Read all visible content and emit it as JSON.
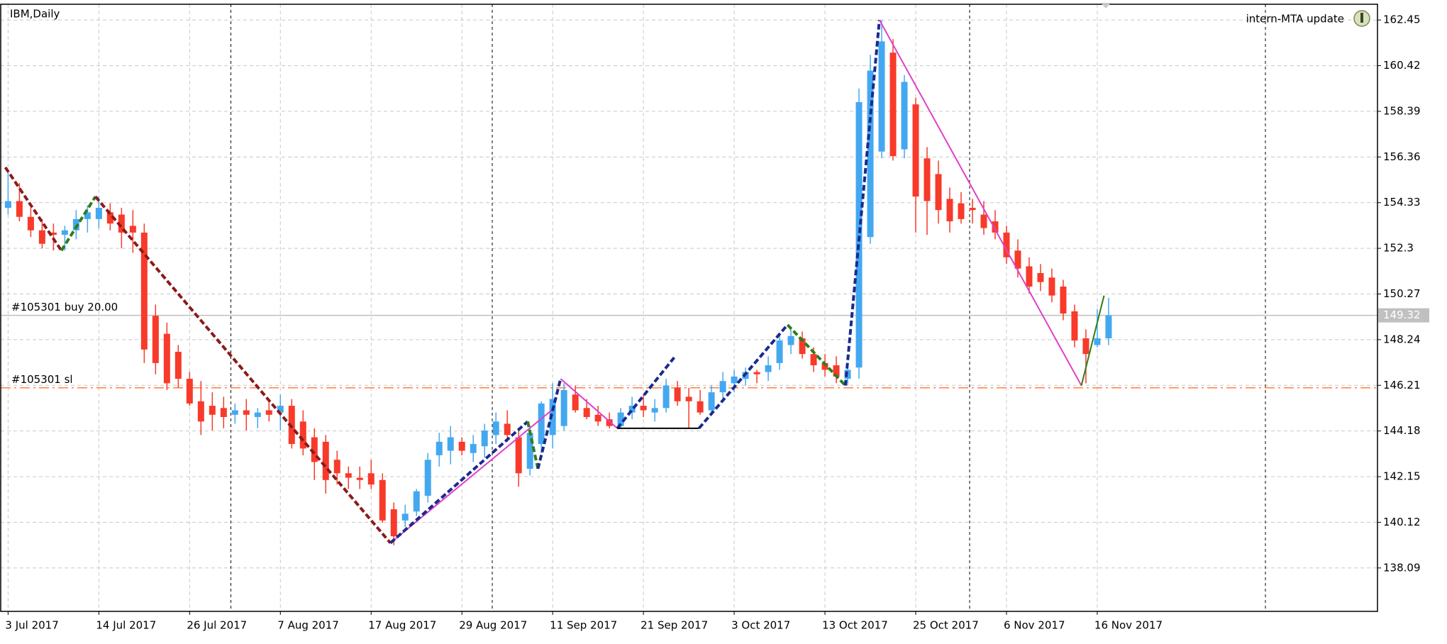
{
  "chart_data": {
    "type": "candlestick",
    "title": "IBM,Daily",
    "indicator_label": "intern-MTA update",
    "up_color": "#44a8f0",
    "down_color": "#f83a2a",
    "grid": true,
    "ylim": [
      136.16,
      163.15
    ],
    "yticks": [
      162.45,
      160.42,
      158.39,
      156.36,
      154.33,
      152.3,
      150.27,
      148.24,
      146.21,
      144.18,
      142.15,
      140.12,
      138.09
    ],
    "xlim": [
      -0.65,
      120.7
    ],
    "xticks": [
      {
        "value": 0,
        "label": "3 Jul 2017"
      },
      {
        "value": 8,
        "label": "14 Jul 2017"
      },
      {
        "value": 16,
        "label": "26 Jul 2017"
      },
      {
        "value": 24,
        "label": "7 Aug 2017"
      },
      {
        "value": 32,
        "label": "17 Aug 2017"
      },
      {
        "value": 40,
        "label": "29 Aug 2017"
      },
      {
        "value": 48,
        "label": "11 Sep 2017"
      },
      {
        "value": 56,
        "label": "21 Sep 2017"
      },
      {
        "value": 64,
        "label": "3 Oct 2017"
      },
      {
        "value": 72,
        "label": "13 Oct 2017"
      },
      {
        "value": 80,
        "label": "25 Oct 2017"
      },
      {
        "value": 88,
        "label": "6 Nov 2017"
      },
      {
        "value": 96,
        "label": "16 Nov 2017"
      }
    ],
    "candles": {
      "open": [
        154.1,
        154.4,
        153.7,
        153.1,
        153.0,
        152.9,
        153.1,
        153.6,
        153.6,
        153.9,
        153.8,
        153.3,
        153.0,
        149.3,
        148.5,
        147.7,
        146.5,
        145.5,
        145.3,
        145.2,
        144.9,
        145.1,
        144.8,
        145.1,
        145.0,
        145.3,
        144.6,
        143.9,
        143.7,
        142.9,
        142.3,
        142.1,
        142.3,
        142.0,
        140.7,
        140.2,
        140.6,
        141.3,
        143.1,
        143.3,
        143.7,
        143.2,
        143.5,
        144.0,
        144.5,
        143.9,
        142.5,
        143.6,
        144.0,
        144.4,
        145.8,
        145.2,
        144.9,
        144.7,
        144.4,
        145.0,
        145.3,
        145.0,
        145.2,
        146.1,
        145.7,
        145.5,
        145.1,
        145.9,
        146.3,
        146.5,
        146.8,
        146.8,
        147.2,
        148.0,
        148.3,
        147.6,
        147.2,
        147.1,
        146.5,
        147.0,
        152.8,
        156.6,
        161.0,
        156.7,
        158.7,
        156.3,
        155.6,
        154.5,
        154.3,
        154.1,
        153.8,
        153.5,
        153.0,
        152.2,
        151.5,
        151.2,
        151.0,
        150.6,
        149.5,
        148.3,
        148.0,
        148.3
      ],
      "high": [
        155.7,
        155.2,
        154.1,
        153.6,
        153.4,
        153.3,
        154.0,
        154.2,
        154.6,
        154.3,
        154.1,
        154.0,
        153.4,
        149.8,
        149.0,
        148.0,
        146.8,
        146.4,
        145.9,
        145.7,
        145.4,
        145.6,
        145.2,
        145.6,
        145.8,
        145.6,
        145.1,
        144.3,
        144.0,
        143.3,
        142.6,
        142.6,
        142.9,
        142.3,
        141.0,
        140.9,
        141.6,
        143.2,
        144.1,
        144.4,
        143.9,
        144.0,
        144.5,
        145.0,
        145.1,
        144.3,
        144.4,
        145.5,
        146.3,
        146.3,
        146.2,
        145.6,
        145.3,
        145.0,
        145.2,
        145.7,
        145.8,
        145.6,
        146.5,
        146.4,
        146.1,
        146.0,
        146.2,
        146.8,
        146.9,
        147.0,
        146.9,
        147.5,
        148.5,
        148.7,
        148.6,
        147.9,
        147.6,
        147.5,
        147.0,
        159.4,
        160.9,
        162.45,
        161.6,
        160.0,
        159.0,
        156.8,
        156.2,
        155.0,
        154.8,
        154.5,
        154.4,
        154.0,
        153.3,
        152.7,
        151.9,
        151.6,
        151.4,
        150.9,
        149.8,
        148.7,
        149.6,
        150.1
      ],
      "low": [
        153.8,
        153.5,
        152.8,
        152.3,
        152.2,
        152.2,
        152.7,
        153.0,
        153.2,
        153.1,
        152.3,
        152.1,
        147.2,
        146.7,
        146.0,
        146.1,
        145.3,
        144.0,
        144.2,
        144.3,
        144.5,
        144.2,
        144.3,
        144.6,
        144.2,
        143.4,
        143.1,
        142.0,
        141.4,
        141.8,
        141.6,
        141.6,
        141.6,
        140.1,
        139.1,
        139.9,
        140.4,
        141.0,
        142.6,
        142.7,
        143.1,
        142.8,
        143.0,
        143.6,
        143.7,
        141.7,
        142.2,
        143.2,
        143.4,
        144.2,
        145.0,
        144.7,
        144.4,
        144.3,
        144.3,
        144.7,
        144.8,
        144.6,
        145.0,
        145.3,
        144.3,
        144.9,
        145.0,
        145.5,
        145.9,
        146.2,
        146.3,
        146.4,
        146.9,
        147.6,
        147.4,
        146.8,
        146.6,
        146.3,
        146.2,
        146.5,
        152.5,
        156.3,
        156.2,
        156.3,
        153.0,
        152.9,
        153.4,
        153.0,
        153.4,
        153.4,
        152.9,
        152.7,
        151.6,
        151.0,
        150.3,
        150.4,
        149.9,
        149.1,
        147.9,
        146.3,
        147.9,
        148.0
      ],
      "close": [
        154.4,
        153.7,
        153.1,
        152.5,
        152.9,
        153.1,
        153.6,
        153.9,
        154.1,
        153.4,
        153.0,
        153.0,
        147.8,
        147.2,
        146.3,
        146.5,
        145.4,
        144.6,
        144.9,
        144.8,
        145.1,
        144.9,
        145.0,
        144.9,
        145.3,
        143.6,
        143.4,
        142.8,
        142.0,
        142.3,
        142.1,
        142.0,
        141.8,
        140.2,
        139.5,
        140.5,
        141.5,
        142.9,
        143.7,
        143.9,
        143.3,
        143.6,
        144.2,
        144.6,
        144.0,
        142.3,
        144.1,
        145.4,
        145.6,
        146.0,
        145.1,
        144.8,
        144.6,
        144.4,
        145.0,
        145.3,
        145.1,
        145.2,
        146.2,
        145.5,
        145.5,
        145.0,
        145.9,
        146.4,
        146.6,
        146.8,
        146.7,
        147.1,
        148.2,
        148.4,
        147.6,
        147.1,
        146.9,
        146.6,
        146.9,
        158.8,
        160.2,
        161.5,
        156.4,
        159.7,
        154.6,
        154.4,
        154.0,
        153.5,
        153.6,
        154.0,
        153.2,
        153.0,
        151.9,
        151.4,
        150.6,
        150.8,
        150.2,
        149.4,
        148.2,
        147.6,
        148.3,
        149.32
      ]
    },
    "current_price": 149.32,
    "orders": [
      {
        "label": "#105301 buy 20.00",
        "value": 149.32,
        "color": "#c0c0c0",
        "dashed": false
      },
      {
        "label": "#105301 sl",
        "value": 146.1,
        "color": "#ff7f3f",
        "dashed": true
      }
    ],
    "overlays": [
      {
        "color": "#8b1a1a",
        "dashed": true,
        "x": [
          -0.24,
          4.7
        ],
        "y": [
          155.9,
          152.2
        ]
      },
      {
        "color": "#2e7d1a",
        "dashed": true,
        "x": [
          4.7,
          7.7
        ],
        "y": [
          152.2,
          154.6
        ]
      },
      {
        "color": "#8b1a1a",
        "dashed": true,
        "x": [
          7.7,
          33.7
        ],
        "y": [
          154.6,
          139.2
        ]
      },
      {
        "color": "#e040c8",
        "dashed": false,
        "x": [
          33.7,
          47.9
        ],
        "y": [
          139.2,
          145.1
        ]
      },
      {
        "color": "#1a2a8c",
        "dashed": true,
        "x": [
          33.7,
          45.8
        ],
        "y": [
          139.2,
          144.6
        ]
      },
      {
        "color": "#2e7d1a",
        "dashed": true,
        "x": [
          45.8,
          46.7
        ],
        "y": [
          144.6,
          142.5
        ]
      },
      {
        "color": "#1a2a8c",
        "dashed": true,
        "x": [
          46.7,
          48.7
        ],
        "y": [
          142.5,
          146.5
        ]
      },
      {
        "color": "#e040c8",
        "dashed": false,
        "x": [
          48.7,
          53.7
        ],
        "y": [
          146.5,
          144.3
        ]
      },
      {
        "color": "#1a2a8c",
        "dashed": true,
        "x": [
          53.7,
          58.8
        ],
        "y": [
          144.3,
          147.5
        ]
      },
      {
        "color": "#000000",
        "dashed": false,
        "x": [
          53.7,
          60.9
        ],
        "y": [
          144.3,
          144.3
        ]
      },
      {
        "color": "#1a2a8c",
        "dashed": true,
        "x": [
          60.9,
          68.7
        ],
        "y": [
          144.3,
          148.9
        ]
      },
      {
        "color": "#2e7d1a",
        "dashed": true,
        "x": [
          68.7,
          73.8
        ],
        "y": [
          148.9,
          146.2
        ]
      },
      {
        "color": "#1a2a8c",
        "dashed": true,
        "x": [
          73.8,
          76.8
        ],
        "y": [
          146.2,
          162.45
        ]
      },
      {
        "color": "#e040c8",
        "dashed": false,
        "x": [
          76.8,
          94.6
        ],
        "y": [
          162.45,
          146.2
        ]
      },
      {
        "color": "#2e7d1a",
        "dashed": false,
        "x": [
          94.6,
          96.6
        ],
        "y": [
          146.2,
          150.2
        ]
      }
    ]
  }
}
